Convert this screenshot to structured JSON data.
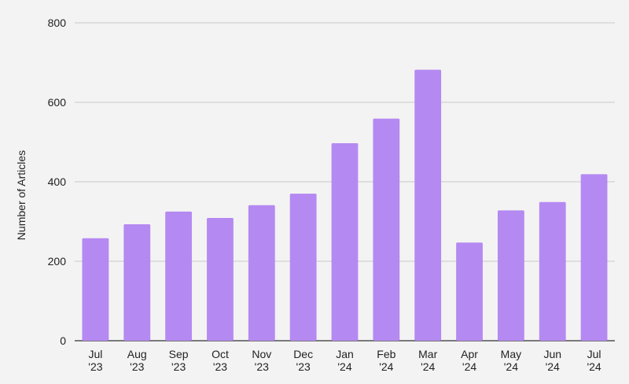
{
  "chart_data": {
    "type": "bar",
    "categories": [
      [
        "Jul",
        "'23"
      ],
      [
        "Aug",
        "'23"
      ],
      [
        "Sep",
        "'23"
      ],
      [
        "Oct",
        "'23"
      ],
      [
        "Nov",
        "'23"
      ],
      [
        "Dec",
        "'23"
      ],
      [
        "Jan",
        "'24"
      ],
      [
        "Feb",
        "'24"
      ],
      [
        "Mar",
        "'24"
      ],
      [
        "Apr",
        "'24"
      ],
      [
        "May",
        "'24"
      ],
      [
        "Jun",
        "'24"
      ],
      [
        "Jul",
        "'24"
      ]
    ],
    "values": [
      258,
      293,
      325,
      309,
      341,
      370,
      497,
      559,
      682,
      247,
      328,
      349,
      419
    ],
    "title": "",
    "xlabel": "",
    "ylabel": "Number of Articles",
    "ylim": [
      0,
      800
    ],
    "yticks": [
      0,
      200,
      400,
      600,
      800
    ],
    "grid": true,
    "bar_color": "#b589f2"
  }
}
